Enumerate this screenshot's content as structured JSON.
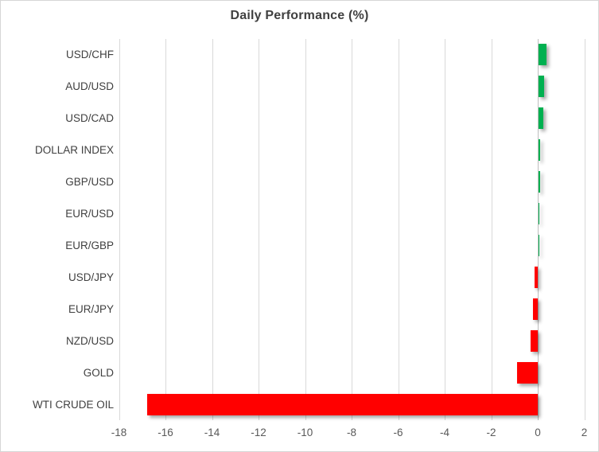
{
  "chart_data": {
    "type": "bar",
    "orientation": "horizontal",
    "title": "Daily Performance (%)",
    "xlabel": "",
    "ylabel": "",
    "categories": [
      "USD/CHF",
      "AUD/USD",
      "USD/CAD",
      "DOLLAR INDEX",
      "GBP/USD",
      "EUR/USD",
      "EUR/GBP",
      "USD/JPY",
      "EUR/JPY",
      "NZD/USD",
      "GOLD",
      "WTI CRUDE OIL"
    ],
    "values": [
      0.35,
      0.25,
      0.22,
      0.07,
      0.06,
      0.01,
      0.0,
      -0.15,
      -0.2,
      -0.32,
      -0.9,
      -16.8
    ],
    "xlim": [
      -18,
      2
    ],
    "xticks": [
      -18,
      -16,
      -14,
      -12,
      -10,
      -8,
      -6,
      -4,
      -2,
      0,
      2
    ],
    "grid": true,
    "legend": false,
    "colors": {
      "positive": "#00B050",
      "negative": "#FF0000",
      "gridline": "#d9d9d9",
      "zero_line": "#bfbfbf",
      "title_text": "#404040",
      "category_text": "#404040",
      "tick_text": "#595959"
    }
  }
}
